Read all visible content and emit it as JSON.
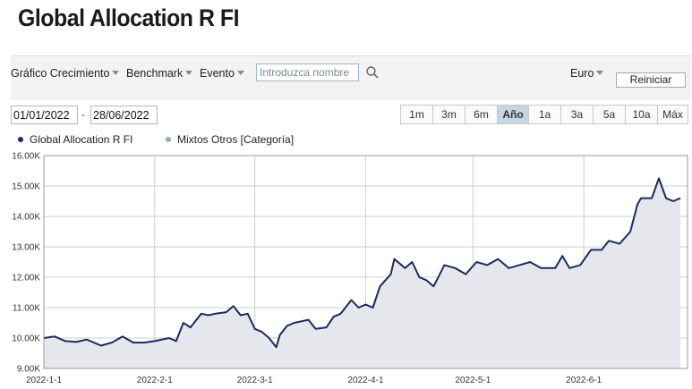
{
  "header": {
    "title": "Global Allocation R FI"
  },
  "toolbar": {
    "growth_label": "Gráfico Crecimiento",
    "benchmark_label": "Benchmark",
    "event_label": "Evento",
    "search_placeholder": "Introduzca nombre",
    "currency_label": "Euro",
    "reset_label": "Reiniciar"
  },
  "date_range": {
    "start": "01/01/2022",
    "separator": "-",
    "end": "28/06/2022"
  },
  "range_buttons": [
    "1m",
    "3m",
    "6m",
    "Año",
    "1a",
    "3a",
    "5a",
    "10a",
    "Máx"
  ],
  "active_range": "Año",
  "legend": [
    {
      "label": "Global Allocation R FI",
      "color": "#1b2a5c"
    },
    {
      "label": "Mixtos Otros [Categoría]",
      "color": "#8fa9bf"
    }
  ],
  "colors": {
    "line": "#1b2a5c",
    "area": "#e6e7ed",
    "grid": "#cfcfcf",
    "active_range": "#c7d4e1"
  },
  "chart_data": {
    "type": "area",
    "series": [
      {
        "name": "Global Allocation R FI",
        "x": [
          "2022-01-01",
          "2022-01-04",
          "2022-01-07",
          "2022-01-10",
          "2022-01-13",
          "2022-01-17",
          "2022-01-20",
          "2022-01-23",
          "2022-01-26",
          "2022-01-29",
          "2022-02-01",
          "2022-02-03",
          "2022-02-05",
          "2022-02-07",
          "2022-02-09",
          "2022-02-11",
          "2022-02-14",
          "2022-02-16",
          "2022-02-18",
          "2022-02-21",
          "2022-02-23",
          "2022-02-25",
          "2022-02-27",
          "2022-03-01",
          "2022-03-03",
          "2022-03-05",
          "2022-03-07",
          "2022-03-08",
          "2022-03-10",
          "2022-03-12",
          "2022-03-14",
          "2022-03-16",
          "2022-03-18",
          "2022-03-21",
          "2022-03-23",
          "2022-03-25",
          "2022-03-28",
          "2022-03-30",
          "2022-04-01",
          "2022-04-03",
          "2022-04-05",
          "2022-04-08",
          "2022-04-09",
          "2022-04-12",
          "2022-04-14",
          "2022-04-16",
          "2022-04-18",
          "2022-04-20",
          "2022-04-23",
          "2022-04-26",
          "2022-04-29",
          "2022-05-02",
          "2022-05-05",
          "2022-05-08",
          "2022-05-11",
          "2022-05-14",
          "2022-05-17",
          "2022-05-20",
          "2022-05-24",
          "2022-05-26",
          "2022-05-28",
          "2022-05-31",
          "2022-06-03",
          "2022-06-06",
          "2022-06-08",
          "2022-06-11",
          "2022-06-14",
          "2022-06-16",
          "2022-06-17",
          "2022-06-20",
          "2022-06-22",
          "2022-06-24",
          "2022-06-26",
          "2022-06-28"
        ],
        "values": [
          10000,
          10050,
          9900,
          9870,
          9950,
          9750,
          9850,
          10050,
          9850,
          9850,
          9900,
          9950,
          10000,
          9900,
          10500,
          10350,
          10800,
          10750,
          10800,
          10850,
          11050,
          10750,
          10800,
          10300,
          10200,
          10000,
          9700,
          10100,
          10400,
          10500,
          10550,
          10600,
          10300,
          10350,
          10700,
          10800,
          11250,
          11000,
          11100,
          11000,
          11700,
          12100,
          12600,
          12300,
          12500,
          12000,
          11900,
          11700,
          12400,
          12300,
          12100,
          12500,
          12400,
          12600,
          12300,
          12400,
          12500,
          12300,
          12300,
          12700,
          12300,
          12400,
          12900,
          12900,
          13200,
          13100,
          13500,
          14400,
          14600,
          14600,
          15250,
          14600,
          14500,
          14600
        ]
      }
    ],
    "x_ticks": [
      "2022-1-1",
      "2022-2-1",
      "2022-3-1",
      "2022-4-1",
      "2022-5-1",
      "2022-6-1"
    ],
    "x_tick_dates": [
      "2022-01-01",
      "2022-02-01",
      "2022-03-01",
      "2022-04-01",
      "2022-05-01",
      "2022-06-01"
    ],
    "x_range": [
      "2022-01-01",
      "2022-06-30"
    ],
    "y_ticks": [
      "9.00K",
      "10.00K",
      "11.00K",
      "12.00K",
      "13.00K",
      "14.00K",
      "15.00K",
      "16.00K"
    ],
    "y_tick_values": [
      9000,
      10000,
      11000,
      12000,
      13000,
      14000,
      15000,
      16000
    ],
    "ylim": [
      9000,
      16000
    ],
    "grid": true,
    "legend_position": "top-left"
  }
}
